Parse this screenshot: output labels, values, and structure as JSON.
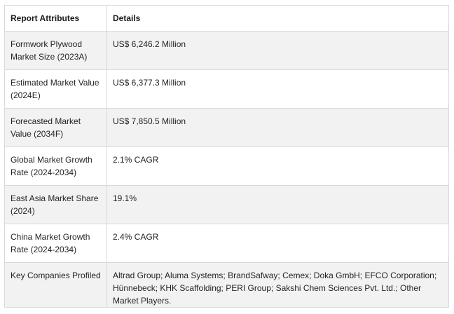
{
  "table": {
    "headers": [
      "Report Attributes",
      "Details"
    ],
    "rows": [
      {
        "attribute": "Formwork Plywood Market Size (2023A)",
        "detail": "US$ 6,246.2 Million"
      },
      {
        "attribute": "Estimated Market Value (2024E)",
        "detail": "US$ 6,377.3 Million"
      },
      {
        "attribute": "Forecasted Market Value (2034F)",
        "detail": "US$ 7,850.5 Million"
      },
      {
        "attribute": "Global Market Growth Rate (2024-2034)",
        "detail": "2.1% CAGR"
      },
      {
        "attribute": "East Asia Market Share (2024)",
        "detail": "19.1%"
      },
      {
        "attribute": "China Market Growth Rate (2024-2034)",
        "detail": "2.4% CAGR"
      },
      {
        "attribute": "Key Companies Profiled",
        "detail": "Altrad Group; Aluma Systems; BrandSafway; Cemex; Doka GmbH; EFCO Corporation; Hünnebeck; KHK Scaffolding; PERI Group; Sakshi Chem Sciences Pvt. Ltd.; Other Market Players."
      }
    ]
  },
  "colors": {
    "border": "#d9d9d9",
    "shaded_row": "#f2f2f2",
    "text": "#242424"
  }
}
